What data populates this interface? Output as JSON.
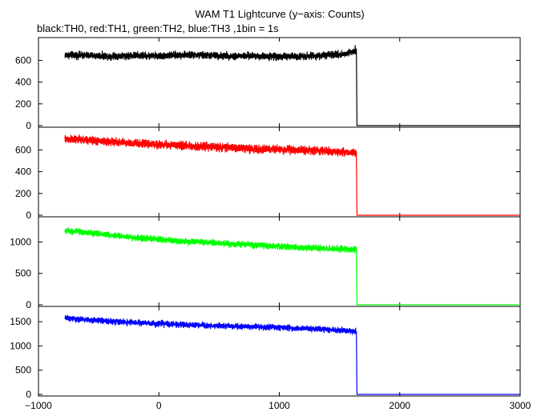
{
  "chart_data": {
    "type": "line",
    "title": "WAM T1 Lightcurve (y−axis: Counts)",
    "subtitle": "black:TH0, red:TH1, green:TH2, blue:TH3 ,1bin = 1s",
    "xlabel": "",
    "ylabel": "",
    "xlim": [
      -1000,
      3000
    ],
    "x_ticks": [
      -1000,
      0,
      1000,
      2000,
      3000
    ],
    "x_tick_labels": [
      "−1000",
      "0",
      "1000",
      "2000",
      "3000"
    ],
    "grid": false,
    "panels": [
      {
        "name": "TH0",
        "color": "#000000",
        "ylim": [
          0,
          780
        ],
        "y_ticks": [
          0,
          200,
          400,
          600
        ],
        "y_tick_labels": [
          "0",
          "200",
          "400",
          "600"
        ],
        "x": [
          -780,
          -600,
          -400,
          -200,
          0,
          200,
          400,
          600,
          800,
          1000,
          1200,
          1400,
          1550,
          1620,
          1640,
          1645,
          2000,
          3000
        ],
        "values": [
          650,
          645,
          640,
          645,
          640,
          650,
          645,
          640,
          640,
          635,
          640,
          645,
          660,
          690,
          700,
          0,
          0,
          0
        ],
        "noise": 28
      },
      {
        "name": "TH1",
        "color": "#ff0000",
        "ylim": [
          0,
          780
        ],
        "y_ticks": [
          0,
          200,
          400,
          600
        ],
        "y_tick_labels": [
          "0",
          "200",
          "400",
          "600"
        ],
        "x": [
          -780,
          -600,
          -400,
          -200,
          0,
          200,
          400,
          600,
          800,
          1000,
          1200,
          1400,
          1640,
          1645,
          2000,
          3000
        ],
        "values": [
          700,
          690,
          675,
          660,
          650,
          640,
          630,
          620,
          610,
          605,
          600,
          590,
          575,
          0,
          0,
          0
        ],
        "noise": 32
      },
      {
        "name": "TH2",
        "color": "#00ff00",
        "ylim": [
          0,
          1350
        ],
        "y_ticks": [
          0,
          500,
          1000
        ],
        "y_tick_labels": [
          "0",
          "500",
          "1000"
        ],
        "x": [
          -780,
          -600,
          -400,
          -200,
          0,
          200,
          400,
          600,
          800,
          1000,
          1200,
          1400,
          1640,
          1645,
          2000,
          3000
        ],
        "values": [
          1180,
          1150,
          1110,
          1070,
          1040,
          1010,
          990,
          970,
          950,
          930,
          910,
          895,
          880,
          0,
          0,
          0
        ],
        "noise": 42
      },
      {
        "name": "TH3",
        "color": "#0000ff",
        "ylim": [
          0,
          1750
        ],
        "y_ticks": [
          0,
          500,
          1000,
          1500
        ],
        "y_tick_labels": [
          "0",
          "500",
          "1000",
          "1500"
        ],
        "x": [
          -780,
          -600,
          -400,
          -200,
          0,
          200,
          400,
          600,
          800,
          1000,
          1200,
          1400,
          1640,
          1645,
          2000,
          3000
        ],
        "values": [
          1570,
          1540,
          1510,
          1480,
          1460,
          1440,
          1420,
          1410,
          1390,
          1380,
          1360,
          1340,
          1300,
          0,
          0,
          0
        ],
        "noise": 50
      }
    ]
  }
}
